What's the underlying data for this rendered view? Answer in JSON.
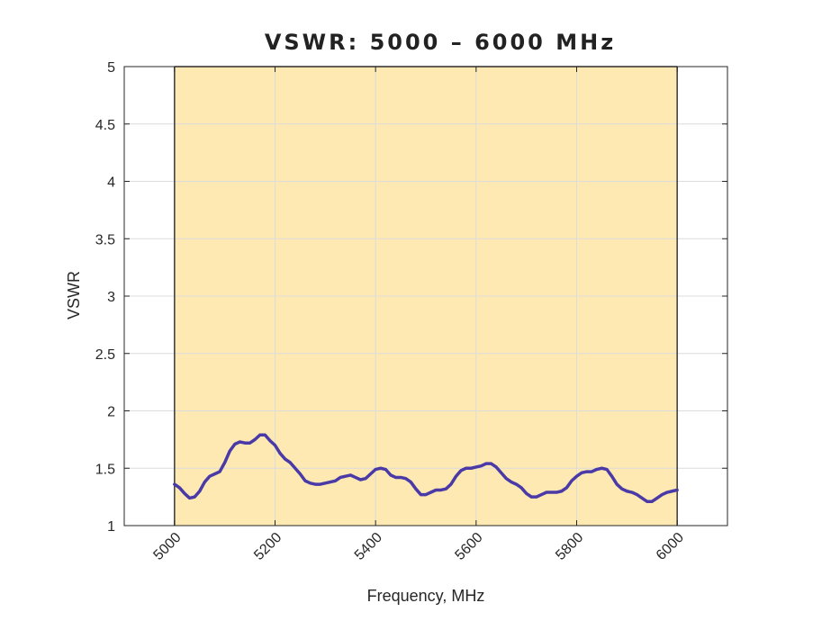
{
  "chart_data": {
    "type": "line",
    "title": "VSWR: 5000 – 6000 MHz",
    "xlabel": "Frequency, MHz",
    "ylabel": "VSWR",
    "xlim": [
      4900,
      6100
    ],
    "ylim": [
      1,
      5
    ],
    "grid": true,
    "x_ticks": [
      5000,
      5200,
      5400,
      5600,
      5800,
      6000
    ],
    "x_tick_labels": [
      "5000",
      "5200",
      "5400",
      "5600",
      "5800",
      "6000"
    ],
    "y_ticks": [
      1,
      1.5,
      2,
      2.5,
      3,
      3.5,
      4,
      4.5,
      5
    ],
    "y_tick_labels": [
      "1",
      "1.5",
      "2",
      "2.5",
      "3",
      "3.5",
      "4",
      "4.5",
      "5"
    ],
    "band": {
      "x_start": 5000,
      "x_end": 6000,
      "color": "#ffe9b2"
    },
    "series": [
      {
        "name": "VSWR",
        "color": "#4a3aa8",
        "x": [
          5000,
          5010,
          5020,
          5030,
          5040,
          5050,
          5060,
          5070,
          5080,
          5090,
          5100,
          5110,
          5120,
          5130,
          5140,
          5150,
          5160,
          5170,
          5180,
          5190,
          5200,
          5210,
          5220,
          5230,
          5240,
          5250,
          5260,
          5270,
          5280,
          5290,
          5300,
          5310,
          5320,
          5330,
          5340,
          5350,
          5360,
          5370,
          5380,
          5390,
          5400,
          5410,
          5420,
          5430,
          5440,
          5450,
          5460,
          5470,
          5480,
          5490,
          5500,
          5510,
          5520,
          5530,
          5540,
          5550,
          5560,
          5570,
          5580,
          5590,
          5600,
          5610,
          5620,
          5630,
          5640,
          5650,
          5660,
          5670,
          5680,
          5690,
          5700,
          5710,
          5720,
          5730,
          5740,
          5750,
          5760,
          5770,
          5780,
          5790,
          5800,
          5810,
          5820,
          5830,
          5840,
          5850,
          5860,
          5870,
          5880,
          5890,
          5900,
          5910,
          5920,
          5930,
          5940,
          5950,
          5960,
          5970,
          5980,
          5990,
          6000
        ],
        "y": [
          1.36,
          1.33,
          1.28,
          1.24,
          1.25,
          1.3,
          1.38,
          1.43,
          1.45,
          1.47,
          1.55,
          1.65,
          1.71,
          1.73,
          1.72,
          1.72,
          1.75,
          1.79,
          1.79,
          1.74,
          1.7,
          1.63,
          1.58,
          1.55,
          1.5,
          1.45,
          1.39,
          1.37,
          1.36,
          1.36,
          1.37,
          1.38,
          1.39,
          1.42,
          1.43,
          1.44,
          1.42,
          1.4,
          1.41,
          1.45,
          1.49,
          1.5,
          1.49,
          1.44,
          1.42,
          1.42,
          1.41,
          1.38,
          1.32,
          1.27,
          1.27,
          1.29,
          1.31,
          1.31,
          1.32,
          1.36,
          1.43,
          1.48,
          1.5,
          1.5,
          1.51,
          1.52,
          1.54,
          1.54,
          1.51,
          1.46,
          1.41,
          1.38,
          1.36,
          1.33,
          1.28,
          1.25,
          1.25,
          1.27,
          1.29,
          1.29,
          1.29,
          1.3,
          1.33,
          1.39,
          1.43,
          1.46,
          1.47,
          1.47,
          1.49,
          1.5,
          1.49,
          1.43,
          1.36,
          1.32,
          1.3,
          1.29,
          1.27,
          1.24,
          1.21,
          1.21,
          1.24,
          1.27,
          1.29,
          1.3,
          1.31
        ]
      }
    ]
  }
}
